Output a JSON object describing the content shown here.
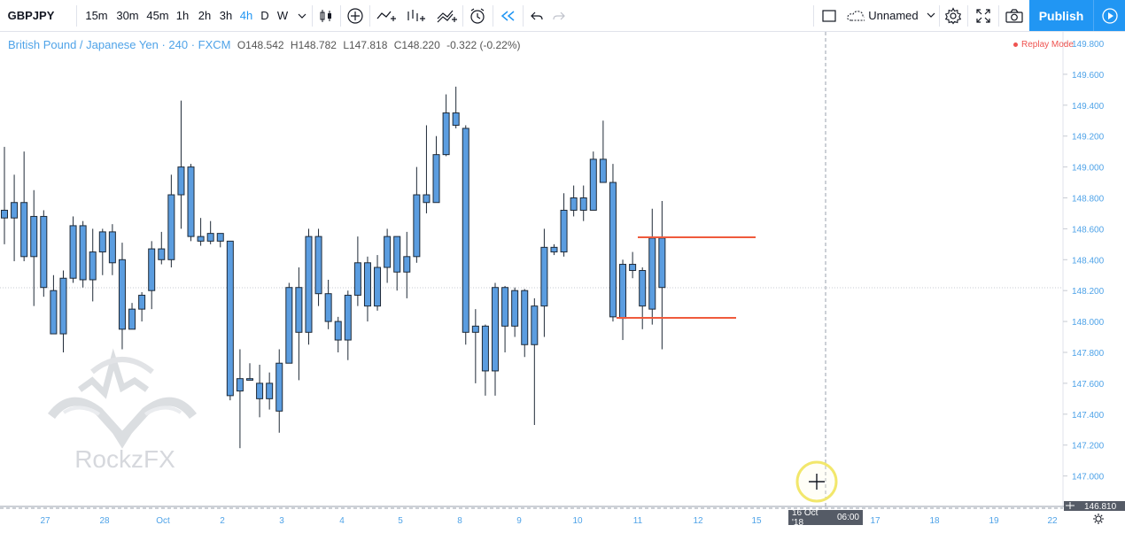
{
  "toolbar": {
    "symbol": "GBPJPY",
    "timeframes": [
      "15m",
      "30m",
      "45m",
      "1h",
      "2h",
      "3h",
      "4h",
      "D",
      "W"
    ],
    "active_timeframe": "4h",
    "layout_name": "Unnamed",
    "publish_label": "Publish",
    "icons": [
      "chevron-down-icon",
      "candles-icon",
      "add-indicator-icon",
      "compare-icon",
      "indicators-icon",
      "templates-icon",
      "alert-icon",
      "replay-icon",
      "undo-icon",
      "redo-icon",
      "fullscreen-box-icon",
      "cloud-icon",
      "settings-icon",
      "fullscreen-icon",
      "camera-icon",
      "play-icon"
    ]
  },
  "legend": {
    "title": "British Pound / Japanese Yen · 240 · FXCM",
    "open_label": "O",
    "open": "148.542",
    "high_label": "H",
    "high": "148.782",
    "low_label": "L",
    "low": "147.818",
    "close_label": "C",
    "close": "148.220",
    "change": "-0.322 (-0.22%)"
  },
  "replay_mode": "Replay Mode",
  "watermark": "RockzFX",
  "crosshair": {
    "date_label": "16 Oct '18",
    "time_label": "06:00",
    "price_label": "146.810"
  },
  "colors": {
    "candle_fill": "#5b9de0",
    "candle_border": "#1f2a37",
    "accent": "#2196f3",
    "level_line": "#ef5a3c",
    "axis_text": "#4fa3e8"
  },
  "chart_data": {
    "type": "candlestick",
    "title": "British Pound / Japanese Yen · 240 · FXCM",
    "ylim": [
      146.8,
      149.9
    ],
    "y_ticks": [
      "149.800",
      "149.600",
      "149.400",
      "149.200",
      "149.000",
      "148.800",
      "148.600",
      "148.400",
      "148.200",
      "148.000",
      "147.800",
      "147.600",
      "147.400",
      "147.200",
      "147.000"
    ],
    "x_ticks": [
      "27",
      "28",
      "Oct",
      "2",
      "3",
      "4",
      "5",
      "8",
      "9",
      "10",
      "11",
      "12",
      "15",
      "17",
      "18",
      "19",
      "22"
    ],
    "candles": [
      [
        148.72,
        148.67,
        149.13,
        148.5
      ],
      [
        148.67,
        148.77,
        148.95,
        148.39
      ],
      [
        148.77,
        148.42,
        149.1,
        148.39
      ],
      [
        148.42,
        148.68,
        148.85,
        148.1
      ],
      [
        148.68,
        148.22,
        148.72,
        148.16
      ],
      [
        148.2,
        147.92,
        148.3,
        147.92
      ],
      [
        147.92,
        148.28,
        148.33,
        147.8
      ],
      [
        148.28,
        148.62,
        148.68,
        148.25
      ],
      [
        148.62,
        148.27,
        148.65,
        148.22
      ],
      [
        148.27,
        148.45,
        148.6,
        148.13
      ],
      [
        148.45,
        148.58,
        148.6,
        148.3
      ],
      [
        148.58,
        148.38,
        148.63,
        148.3
      ],
      [
        148.4,
        147.95,
        148.51,
        147.82
      ],
      [
        147.95,
        148.08,
        148.12,
        147.95
      ],
      [
        148.08,
        148.17,
        148.19,
        148.0
      ],
      [
        148.2,
        148.47,
        148.52,
        148.08
      ],
      [
        148.47,
        148.4,
        148.58,
        148.37
      ],
      [
        148.4,
        148.82,
        148.95,
        148.35
      ],
      [
        148.82,
        149.0,
        149.43,
        148.6
      ],
      [
        149.0,
        148.55,
        149.02,
        148.52
      ],
      [
        148.55,
        148.52,
        148.67,
        148.49
      ],
      [
        148.52,
        148.57,
        148.65,
        148.5
      ],
      [
        148.57,
        148.52,
        148.57,
        148.48
      ],
      [
        148.52,
        147.52,
        148.52,
        147.49
      ],
      [
        147.55,
        147.63,
        147.82,
        147.18
      ],
      [
        147.63,
        147.62,
        147.73,
        147.62
      ],
      [
        147.6,
        147.5,
        147.72,
        147.38
      ],
      [
        147.5,
        147.6,
        147.67,
        147.43
      ],
      [
        147.42,
        147.73,
        147.82,
        147.28
      ],
      [
        147.73,
        148.22,
        148.25,
        147.73
      ],
      [
        148.22,
        147.93,
        148.35,
        147.62
      ],
      [
        147.93,
        148.55,
        148.6,
        147.85
      ],
      [
        148.55,
        148.18,
        148.6,
        148.1
      ],
      [
        148.18,
        148.0,
        148.27,
        147.95
      ],
      [
        148.0,
        147.88,
        148.03,
        147.8
      ],
      [
        147.88,
        148.17,
        148.2,
        147.75
      ],
      [
        148.17,
        148.38,
        148.55,
        148.1
      ],
      [
        148.38,
        148.1,
        148.42,
        148.0
      ],
      [
        148.1,
        148.35,
        148.43,
        148.07
      ],
      [
        148.35,
        148.55,
        148.6,
        148.25
      ],
      [
        148.55,
        148.32,
        148.55,
        148.2
      ],
      [
        148.32,
        148.42,
        148.58,
        148.15
      ],
      [
        148.42,
        148.82,
        149.0,
        148.38
      ],
      [
        148.82,
        148.77,
        149.27,
        148.7
      ],
      [
        148.77,
        149.08,
        149.2,
        148.78
      ],
      [
        149.08,
        149.35,
        149.47,
        149.07
      ],
      [
        149.35,
        149.27,
        149.52,
        149.25
      ],
      [
        149.25,
        147.93,
        149.27,
        147.85
      ],
      [
        147.93,
        147.97,
        148.08,
        147.6
      ],
      [
        147.97,
        147.68,
        147.98,
        147.52
      ],
      [
        147.68,
        148.22,
        148.25,
        147.52
      ],
      [
        148.22,
        147.97,
        148.23,
        147.8
      ],
      [
        147.97,
        148.2,
        148.22,
        147.9
      ],
      [
        148.2,
        147.85,
        148.21,
        147.77
      ],
      [
        147.85,
        148.1,
        148.15,
        147.33
      ],
      [
        148.1,
        148.48,
        148.6,
        147.9
      ],
      [
        148.48,
        148.45,
        148.5,
        148.43
      ],
      [
        148.45,
        148.72,
        148.83,
        148.42
      ],
      [
        148.72,
        148.8,
        148.88,
        148.68
      ],
      [
        148.8,
        148.72,
        148.88,
        148.65
      ],
      [
        148.72,
        149.05,
        149.1,
        148.73
      ],
      [
        149.05,
        148.9,
        149.3,
        148.9
      ],
      [
        148.9,
        148.03,
        149.02,
        148.0
      ],
      [
        148.02,
        148.37,
        148.4,
        147.88
      ],
      [
        148.37,
        148.33,
        148.45,
        148.28
      ],
      [
        148.33,
        148.1,
        148.35,
        147.95
      ],
      [
        148.08,
        148.54,
        148.73,
        147.98
      ],
      [
        148.54,
        148.22,
        148.78,
        147.82
      ]
    ],
    "levels": [
      148.55,
      148.03
    ]
  }
}
